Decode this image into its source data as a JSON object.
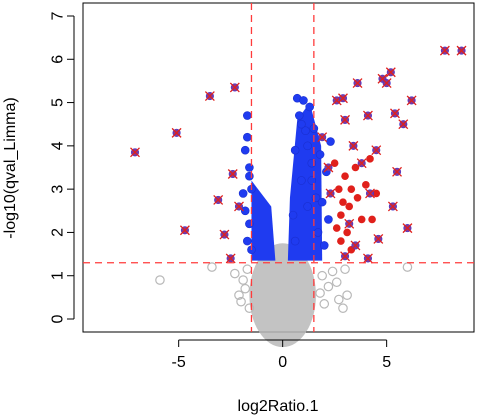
{
  "chart_data": {
    "type": "scatter",
    "title": "",
    "xlabel": "log2Ratio.1",
    "ylabel": "-log10(qval_Limma)",
    "xlim": [
      -9.6,
      9.2
    ],
    "ylim": [
      -0.3,
      7.3
    ],
    "xticks": [
      -5,
      0,
      5
    ],
    "yticks": [
      0,
      1,
      2,
      3,
      4,
      5,
      6,
      7
    ],
    "grid": false,
    "legend": "none",
    "threshold_lines": {
      "vertical": [
        -1.5,
        1.5
      ],
      "horizontal": 1.3,
      "style": "dashed",
      "color": "#ff3b3b"
    },
    "colors": {
      "not_significant": "#b8b8b8",
      "significant": "#1f3bf0",
      "up_highlight": "#e0201b",
      "top_marker_cross": "#e0201b",
      "top_marker_fill": "#7b3aa0"
    },
    "series": [
      {
        "values_note": "not significant (grey open circles)",
        "points": [
          [
            -5.9,
            0.9
          ],
          [
            -3.4,
            1.2
          ],
          [
            -2.1,
            0.55
          ],
          [
            -1.9,
            0.9
          ],
          [
            -2.0,
            0.4
          ],
          [
            -1.7,
            1.15
          ],
          [
            -1.6,
            0.25
          ],
          [
            -2.3,
            1.05
          ],
          [
            -1.8,
            0.7
          ],
          [
            1.8,
            0.6
          ],
          [
            2.0,
            0.35
          ],
          [
            2.2,
            0.75
          ],
          [
            2.6,
            0.85
          ],
          [
            3.1,
            0.55
          ],
          [
            2.9,
            0.25
          ],
          [
            2.4,
            1.1
          ],
          [
            1.9,
            1.0
          ],
          [
            6.0,
            1.2
          ],
          [
            3.0,
            1.15
          ],
          [
            2.7,
            0.45
          ]
        ]
      },
      {
        "values_note": "significant (blue)",
        "points": [
          [
            -1.7,
            4.7
          ],
          [
            -1.7,
            4.2
          ],
          [
            -1.8,
            3.9
          ],
          [
            -1.9,
            2.9
          ],
          [
            -1.6,
            3.5
          ],
          [
            -1.5,
            3.0
          ],
          [
            -1.6,
            2.2
          ],
          [
            -1.7,
            1.8
          ],
          [
            -1.8,
            2.5
          ],
          [
            -1.5,
            1.6
          ],
          [
            -1.6,
            3.3
          ],
          [
            0.7,
            5.1
          ],
          [
            0.8,
            4.7
          ],
          [
            0.9,
            4.5
          ],
          [
            1.0,
            5.05
          ],
          [
            1.1,
            4.35
          ],
          [
            1.2,
            4.0
          ],
          [
            1.3,
            4.9
          ],
          [
            1.5,
            4.4
          ],
          [
            1.4,
            3.6
          ],
          [
            0.6,
            3.9
          ],
          [
            0.9,
            3.2
          ],
          [
            1.4,
            3.2
          ],
          [
            1.6,
            2.8
          ],
          [
            0.5,
            2.4
          ],
          [
            1.2,
            2.6
          ],
          [
            1.7,
            2.0
          ],
          [
            0.6,
            1.8
          ],
          [
            1.9,
            2.7
          ],
          [
            2.1,
            3.4
          ],
          [
            2.3,
            4.1
          ],
          [
            2.2,
            2.3
          ],
          [
            2.0,
            1.7
          ],
          [
            1.8,
            3.8
          ]
        ]
      },
      {
        "values_note": "up-regulated highlight (red)",
        "points": [
          [
            2.5,
            3.6
          ],
          [
            2.7,
            3.0
          ],
          [
            2.8,
            2.4
          ],
          [
            2.9,
            2.7
          ],
          [
            3.0,
            3.3
          ],
          [
            3.1,
            2.0
          ],
          [
            3.2,
            2.6
          ],
          [
            3.3,
            3.0
          ],
          [
            3.5,
            3.5
          ],
          [
            3.6,
            2.8
          ],
          [
            3.8,
            2.3
          ],
          [
            4.0,
            3.1
          ],
          [
            4.2,
            3.7
          ],
          [
            4.5,
            2.9
          ],
          [
            2.6,
            2.1
          ],
          [
            2.8,
            1.8
          ],
          [
            3.3,
            1.6
          ],
          [
            4.3,
            2.3
          ]
        ]
      },
      {
        "values_note": "top-ranked (purple with red cross)",
        "points": [
          [
            -7.1,
            3.85
          ],
          [
            -5.1,
            4.3
          ],
          [
            -4.7,
            2.05
          ],
          [
            -3.5,
            5.15
          ],
          [
            -3.1,
            2.75
          ],
          [
            -2.8,
            1.95
          ],
          [
            -2.3,
            5.35
          ],
          [
            -2.4,
            3.35
          ],
          [
            -2.5,
            1.4
          ],
          [
            -2.1,
            2.6
          ],
          [
            1.9,
            4.2
          ],
          [
            2.2,
            3.5
          ],
          [
            2.3,
            2.9
          ],
          [
            2.6,
            5.05
          ],
          [
            2.9,
            5.1
          ],
          [
            3.0,
            4.6
          ],
          [
            3.2,
            2.2
          ],
          [
            3.4,
            4.0
          ],
          [
            3.5,
            1.7
          ],
          [
            3.6,
            5.45
          ],
          [
            3.8,
            3.6
          ],
          [
            4.1,
            4.7
          ],
          [
            4.2,
            2.9
          ],
          [
            4.5,
            3.9
          ],
          [
            4.6,
            1.85
          ],
          [
            4.8,
            5.55
          ],
          [
            5.0,
            5.45
          ],
          [
            5.2,
            5.7
          ],
          [
            5.4,
            4.75
          ],
          [
            5.5,
            3.4
          ],
          [
            5.8,
            4.5
          ],
          [
            6.2,
            5.05
          ],
          [
            6.0,
            2.1
          ],
          [
            7.8,
            6.2
          ],
          [
            8.6,
            6.2
          ],
          [
            5.3,
            2.6
          ],
          [
            4.1,
            1.4
          ],
          [
            3.0,
            1.45
          ]
        ]
      }
    ]
  }
}
